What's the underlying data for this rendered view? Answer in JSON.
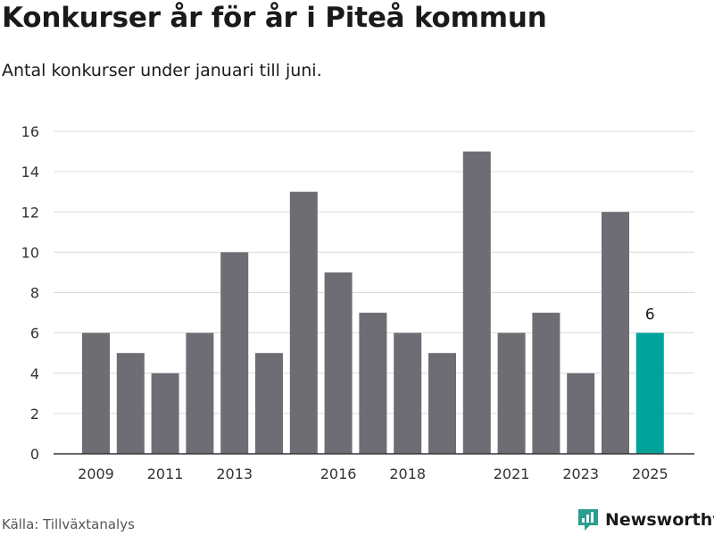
{
  "title": "Konkurser år för år i Piteå kommun",
  "subtitle": "Antal konkurser under januari till juni.",
  "source": "Källa: Tillväxtanalys",
  "brand": {
    "name": "Newsworthy",
    "icon": "newsworthy-logo-icon",
    "color": "#2a9d8f"
  },
  "colors": {
    "bar": "#6e6d73",
    "highlight": "#00a39a",
    "grid": "#dcdcdc",
    "axis": "#333333"
  },
  "chart_data": {
    "type": "bar",
    "title": "",
    "xlabel": "",
    "ylabel": "",
    "categories": [
      "2009",
      "2010",
      "2011",
      "2012",
      "2013",
      "2014",
      "2015",
      "2016",
      "2017",
      "2018",
      "2019",
      "2020",
      "2021",
      "2022",
      "2023",
      "2024",
      "2025"
    ],
    "values": [
      6,
      5,
      4,
      6,
      10,
      5,
      13,
      9,
      7,
      6,
      5,
      15,
      6,
      7,
      4,
      12,
      6
    ],
    "x_tick_labels": [
      "2009",
      "2011",
      "2013",
      "2016",
      "2018",
      "2021",
      "2023",
      "2025"
    ],
    "y_ticks": [
      0,
      2,
      4,
      6,
      8,
      10,
      12,
      14,
      16
    ],
    "ylim": [
      0,
      16
    ],
    "grid": true,
    "highlight_index": 16,
    "data_labels": [
      {
        "category": "2025",
        "text": "6"
      }
    ]
  }
}
